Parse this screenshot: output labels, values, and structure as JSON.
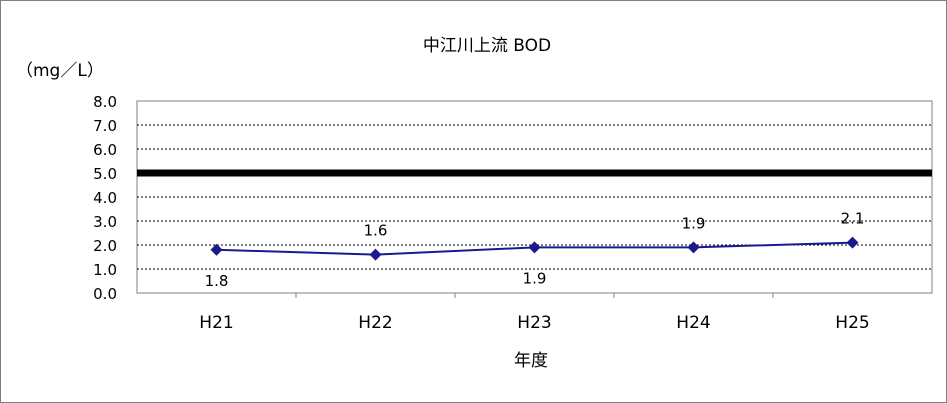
{
  "chart_data": {
    "type": "line",
    "title": "中江川上流 BOD",
    "ylabel": "（mg／L）",
    "xlabel": "年度",
    "categories": [
      "H21",
      "H22",
      "H23",
      "H24",
      "H25"
    ],
    "series": [
      {
        "values": [
          1.8,
          1.6,
          1.9,
          1.9,
          2.1
        ],
        "color": "#1a1a8c"
      }
    ],
    "data_labels": [
      "1.8",
      "1.6",
      "1.9",
      "1.9",
      "2.1"
    ],
    "ylim": [
      0,
      8
    ],
    "yticks": [
      "0.0",
      "1.0",
      "2.0",
      "3.0",
      "4.0",
      "5.0",
      "6.0",
      "7.0",
      "8.0"
    ],
    "reference_line": {
      "value": 5.0,
      "color": "#000000"
    },
    "grid": true,
    "legend": "none"
  }
}
